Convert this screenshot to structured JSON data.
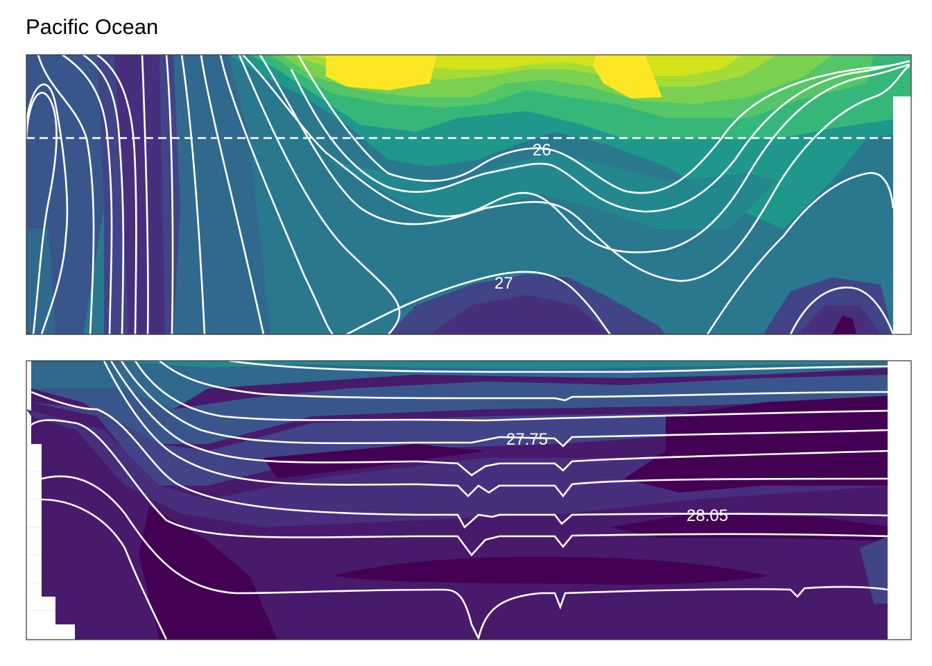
{
  "title": "Pacific Ocean",
  "colors": {
    "viridis": [
      "#440154",
      "#481a6c",
      "#472f7d",
      "#414487",
      "#39568c",
      "#31688e",
      "#2a788e",
      "#23888e",
      "#1f988b",
      "#22a884",
      "#35b779",
      "#54c568",
      "#7ad151",
      "#a5db36",
      "#d2e21b",
      "#fde725"
    ],
    "contour": "#ffffff",
    "frame": "#333333",
    "gridline": "#ebebeb"
  },
  "chart_data": [
    {
      "type": "heatmap",
      "panel": "top",
      "contour_labels": [
        "26",
        "27"
      ],
      "dashed_reference_line": true,
      "fill_palette": "viridis",
      "grid": true
    },
    {
      "type": "heatmap",
      "panel": "bottom",
      "contour_labels": [
        "27.75",
        "28.05"
      ],
      "fill_palette": "viridis",
      "grid": true
    }
  ]
}
